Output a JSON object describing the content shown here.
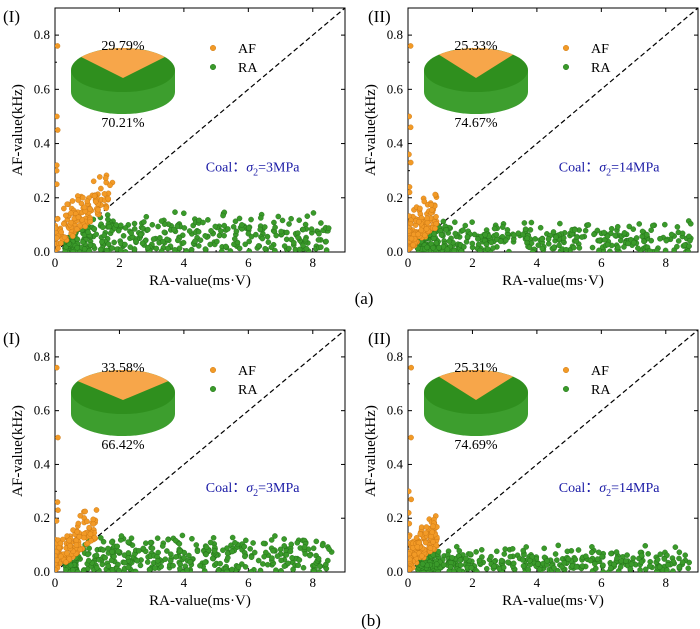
{
  "figure": {
    "row_labels": [
      "(a)",
      "(b)"
    ],
    "legend_colors": {
      "AF": "#f29a26",
      "RA": "#3a9a2a",
      "pie_top_af": "#f7a64a",
      "pie_top_ra": "#2f8f1e",
      "pie_side": "#3d9e2e",
      "diagonal": "#000000"
    }
  },
  "chart_data": [
    {
      "type": "scatter",
      "panel_label": "(I)",
      "row": "(a)",
      "xlabel": "RA-value(ms·V)",
      "ylabel": "AF-value(kHz)",
      "xlim": [
        0,
        9
      ],
      "ylim": [
        0,
        0.9
      ],
      "xticks": [
        "0",
        "2",
        "4",
        "6",
        "8"
      ],
      "yticks": [
        "0.0",
        "0.2",
        "0.4",
        "0.6",
        "0.8"
      ],
      "legend": [
        "AF",
        "RA"
      ],
      "condition": {
        "prefix": "Coal：",
        "symbol": "σ",
        "sub": "2",
        "value": "=3MPa"
      },
      "pie": {
        "af_pct": "29.79%",
        "ra_pct": "70.21%",
        "af": 29.79,
        "ra": 70.21
      },
      "diagonal": {
        "from": [
          0,
          0
        ],
        "to": [
          9,
          0.9
        ]
      },
      "ra_xmax": 8.5,
      "ra_ymax": 0.15,
      "af_xmax": 1.8,
      "af_y_outliers": [
        0.76,
        0.5,
        0.45,
        0.32,
        0.3,
        0.25
      ]
    },
    {
      "type": "scatter",
      "panel_label": "(II)",
      "row": "(a)",
      "xlabel": "RA-value(ms·V)",
      "ylabel": "AF-value(kHz)",
      "xlim": [
        0,
        9
      ],
      "ylim": [
        0,
        0.9
      ],
      "xticks": [
        "0",
        "2",
        "4",
        "6",
        "8"
      ],
      "yticks": [
        "0.0",
        "0.2",
        "0.4",
        "0.6",
        "0.8"
      ],
      "legend": [
        "AF",
        "RA"
      ],
      "condition": {
        "prefix": "Coal：",
        "symbol": "σ",
        "sub": "2",
        "value": "=14MPa"
      },
      "pie": {
        "af_pct": "25.33%",
        "ra_pct": "74.67%",
        "af": 25.33,
        "ra": 74.67
      },
      "diagonal": {
        "from": [
          0,
          0
        ],
        "to": [
          9,
          0.9
        ]
      },
      "ra_xmax": 8.8,
      "ra_ymax": 0.12,
      "af_xmax": 0.9,
      "af_y_outliers": [
        0.76,
        0.5,
        0.46,
        0.36,
        0.33,
        0.24,
        0.22
      ]
    },
    {
      "type": "scatter",
      "panel_label": "(I)",
      "row": "(b)",
      "xlabel": "RA-value(ms·V)",
      "ylabel": "AF-value(kHz)",
      "xlim": [
        0,
        9
      ],
      "ylim": [
        0,
        0.9
      ],
      "xticks": [
        "0",
        "2",
        "4",
        "6",
        "8"
      ],
      "yticks": [
        "0.0",
        "0.2",
        "0.4",
        "0.6",
        "0.8"
      ],
      "legend": [
        "AF",
        "RA"
      ],
      "condition": {
        "prefix": "Coal：",
        "symbol": "σ",
        "sub": "2",
        "value": "=3MPa"
      },
      "pie": {
        "af_pct": "33.58%",
        "ra_pct": "66.42%",
        "af": 33.58,
        "ra": 66.42
      },
      "diagonal": {
        "from": [
          0,
          0
        ],
        "to": [
          9,
          0.9
        ]
      },
      "ra_xmax": 8.6,
      "ra_ymax": 0.15,
      "af_xmax": 1.3,
      "af_y_outliers": [
        0.76,
        0.5,
        0.26,
        0.23,
        0.19
      ]
    },
    {
      "type": "scatter",
      "panel_label": "(II)",
      "row": "(b)",
      "xlabel": "RA-value(ms·V)",
      "ylabel": "AF-value(kHz)",
      "xlim": [
        0,
        9
      ],
      "ylim": [
        0,
        0.9
      ],
      "xticks": [
        "0",
        "2",
        "4",
        "6",
        "8"
      ],
      "yticks": [
        "0.0",
        "0.2",
        "0.4",
        "0.6",
        "0.8"
      ],
      "legend": [
        "AF",
        "RA"
      ],
      "condition": {
        "prefix": "Coal：",
        "symbol": "σ",
        "sub": "2",
        "value": "=14MPa"
      },
      "pie": {
        "af_pct": "25.31%",
        "ra_pct": "74.69%",
        "af": 25.31,
        "ra": 74.69
      },
      "diagonal": {
        "from": [
          0,
          0
        ],
        "to": [
          9,
          0.9
        ]
      },
      "ra_xmax": 8.8,
      "ra_ymax": 0.1,
      "af_xmax": 0.9,
      "af_y_outliers": [
        0.76,
        0.5,
        0.3,
        0.27,
        0.22,
        0.18
      ]
    }
  ]
}
